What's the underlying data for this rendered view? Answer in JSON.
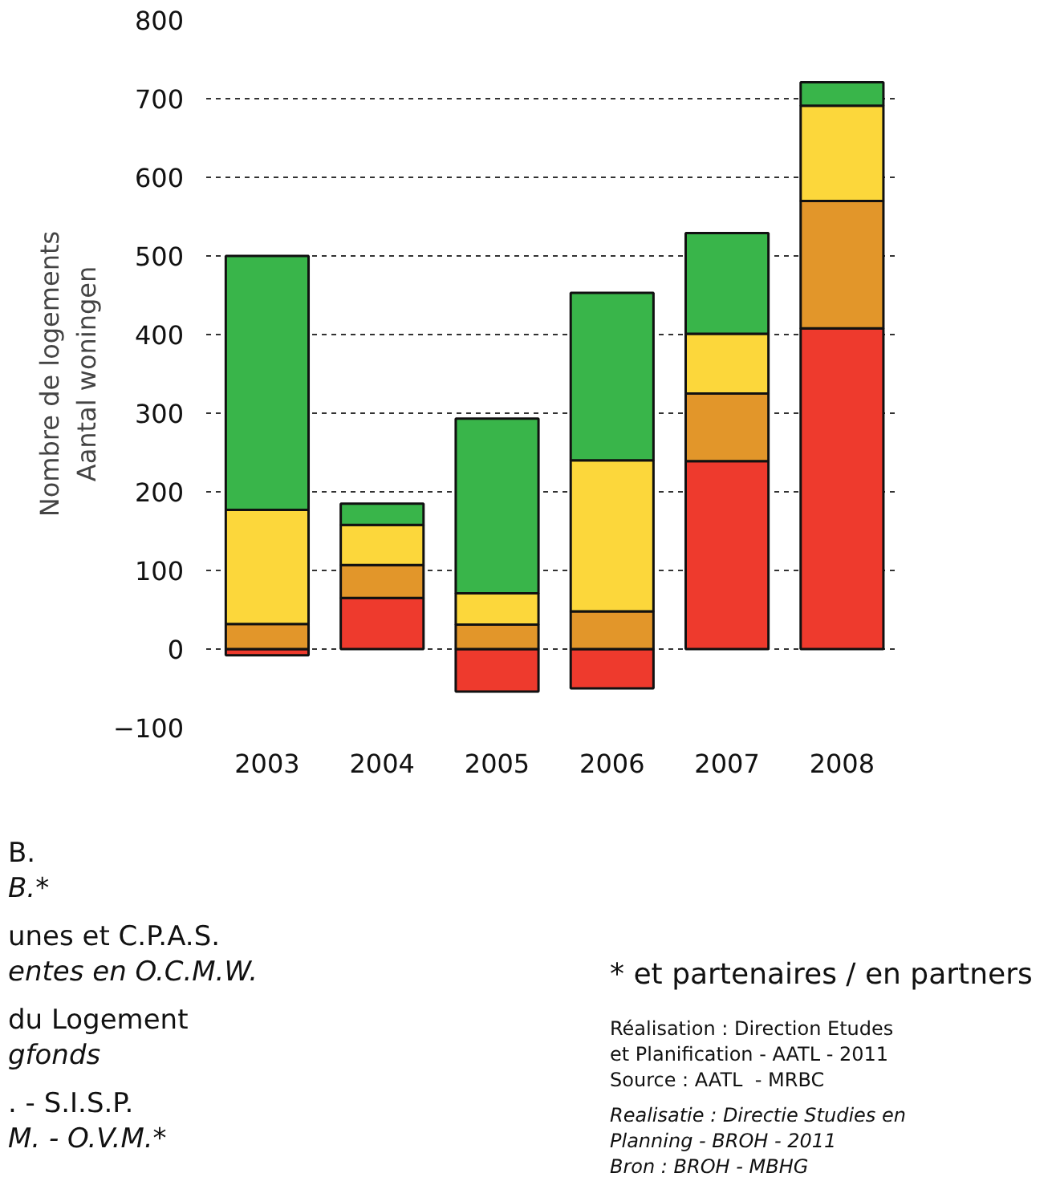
{
  "chart_data": {
    "type": "bar",
    "stacked": true,
    "ylabel": "Nombre de logements\nAantal woningen",
    "categories": [
      "2003",
      "2004",
      "2005",
      "2006",
      "2007",
      "2008"
    ],
    "series": [
      {
        "color": "#ee3a2d",
        "values": [
          -8,
          65,
          -54,
          -50,
          239,
          408
        ]
      },
      {
        "color": "#e2962a",
        "values": [
          32,
          42,
          31,
          48,
          86,
          162
        ]
      },
      {
        "color": "#fcd73b",
        "values": [
          145,
          51,
          40,
          192,
          76,
          121
        ]
      },
      {
        "color": "#39b54a",
        "values": [
          323,
          27,
          222,
          213,
          128,
          30
        ]
      }
    ],
    "ylim": [
      -100,
      800
    ],
    "yticks": [
      -100,
      0,
      100,
      200,
      300,
      400,
      500,
      600,
      700,
      800
    ],
    "grid": "y",
    "annotations": [
      "B.\nB.*",
      "unes et C.P.A.S.\nentes en O.C.M.W.",
      "du Logement\ngfonds",
      ". - S.I.S.P.\nM. - O.V.M.*",
      "* et partenaires / en partners",
      "Réalisation : Direction Etudes\net Planification - AATL - 2011\nSource : AATL  - MRBC",
      "Realisatie : Directie Studies en\nPlanning - BROH - 2011\nBron : BROH - MBHG"
    ]
  }
}
